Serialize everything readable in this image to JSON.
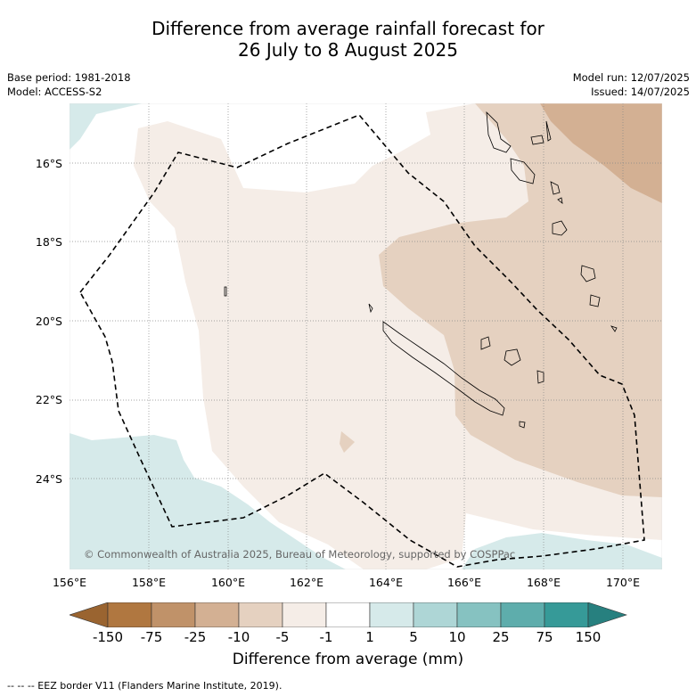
{
  "title": {
    "line1": "Difference from average rainfall forecast for",
    "line2": "26 July to 8 August 2025"
  },
  "meta": {
    "base_period": "Base period: 1981-2018",
    "model": "Model: ACCESS-S2",
    "model_run": "Model run: 12/07/2025",
    "issued": "Issued: 14/07/2025"
  },
  "map": {
    "lat_labels": [
      "16°S",
      "18°S",
      "20°S",
      "22°S",
      "24°S"
    ],
    "lon_labels": [
      "156°E",
      "158°E",
      "160°E",
      "162°E",
      "164°E",
      "166°E",
      "168°E",
      "170°E"
    ],
    "copyright": "© Commonwealth of Australia 2025, Bureau of Meteorology, supported by COSPPac"
  },
  "colorbar": {
    "labels": [
      "-150",
      "-75",
      "-25",
      "-10",
      "-5",
      "-1",
      "1",
      "5",
      "10",
      "25",
      "75",
      "150"
    ],
    "colors": [
      "#b07740",
      "#c09269",
      "#d3b093",
      "#e5d1c0",
      "#f5ede7",
      "#ffffff",
      "#d6eaea",
      "#aed6d6",
      "#86c2c1",
      "#5eadac",
      "#369a98"
    ],
    "extend_low_color": "#9a6430",
    "extend_high_color": "#27807f",
    "axis_label": "Difference from average (mm)"
  },
  "legend_note": "--  --  -- EEZ border V11 (Flanders Marine Institute, 2019)."
}
